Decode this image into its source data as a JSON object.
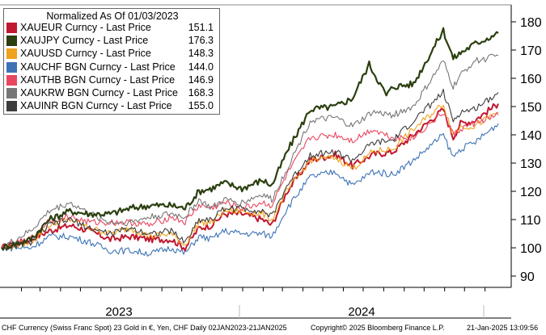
{
  "chart_data": {
    "type": "line",
    "title": "Normalized As Of 01/03/2023",
    "ylim": [
      86,
      186
    ],
    "y_ticks": [
      90,
      100,
      110,
      120,
      130,
      140,
      150,
      160,
      170,
      180
    ],
    "x_period_labels": [
      "2023",
      "2024"
    ],
    "x_range": [
      "2023-01-02",
      "2025-01-21"
    ],
    "grid": false,
    "legend_position": "top-left",
    "series": [
      {
        "name": "XAUEUR Curncy - Last Price",
        "last": "151.1",
        "color": "#c0182f",
        "points": [
          [
            "2023-01-02",
            100
          ],
          [
            "2023-02-15",
            103
          ],
          [
            "2023-03-15",
            106
          ],
          [
            "2023-04-15",
            108
          ],
          [
            "2023-05-15",
            106
          ],
          [
            "2023-06-15",
            103
          ],
          [
            "2023-07-15",
            104
          ],
          [
            "2023-08-15",
            103
          ],
          [
            "2023-09-15",
            103
          ],
          [
            "2023-10-06",
            100
          ],
          [
            "2023-10-27",
            107
          ],
          [
            "2023-11-15",
            108
          ],
          [
            "2023-12-04",
            112
          ],
          [
            "2023-12-31",
            112
          ],
          [
            "2024-01-31",
            110
          ],
          [
            "2024-02-14",
            108
          ],
          [
            "2024-03-08",
            120
          ],
          [
            "2024-04-12",
            131
          ],
          [
            "2024-05-20",
            133
          ],
          [
            "2024-06-15",
            129
          ],
          [
            "2024-07-15",
            133
          ],
          [
            "2024-08-15",
            134
          ],
          [
            "2024-09-15",
            140
          ],
          [
            "2024-10-30",
            149
          ],
          [
            "2024-11-14",
            139
          ],
          [
            "2024-11-25",
            144
          ],
          [
            "2024-12-15",
            145
          ],
          [
            "2025-01-21",
            151
          ]
        ]
      },
      {
        "name": "XAUJPY Curncy - Last Price",
        "last": "176.3",
        "color": "#2b3f0f",
        "points": [
          [
            "2023-01-02",
            100
          ],
          [
            "2023-02-15",
            103
          ],
          [
            "2023-03-15",
            110
          ],
          [
            "2023-04-15",
            113
          ],
          [
            "2023-05-15",
            112
          ],
          [
            "2023-06-15",
            112
          ],
          [
            "2023-07-15",
            114
          ],
          [
            "2023-08-15",
            115
          ],
          [
            "2023-09-15",
            115
          ],
          [
            "2023-10-06",
            114
          ],
          [
            "2023-10-27",
            120
          ],
          [
            "2023-11-15",
            121
          ],
          [
            "2023-12-04",
            123
          ],
          [
            "2023-12-31",
            121
          ],
          [
            "2024-01-31",
            124
          ],
          [
            "2024-02-14",
            122
          ],
          [
            "2024-03-08",
            134
          ],
          [
            "2024-04-12",
            149
          ],
          [
            "2024-05-20",
            150
          ],
          [
            "2024-06-15",
            153
          ],
          [
            "2024-07-10",
            165
          ],
          [
            "2024-08-05",
            154
          ],
          [
            "2024-08-15",
            157
          ],
          [
            "2024-09-15",
            158
          ],
          [
            "2024-10-30",
            177
          ],
          [
            "2024-11-14",
            167
          ],
          [
            "2024-11-25",
            169
          ],
          [
            "2024-12-15",
            172
          ],
          [
            "2025-01-21",
            176
          ]
        ]
      },
      {
        "name": "XAUUSD Curncy - Last Price",
        "last": "148.3",
        "color": "#f0a11e",
        "points": [
          [
            "2023-01-02",
            100
          ],
          [
            "2023-02-15",
            102
          ],
          [
            "2023-03-15",
            108
          ],
          [
            "2023-04-15",
            110
          ],
          [
            "2023-05-15",
            107
          ],
          [
            "2023-06-15",
            105
          ],
          [
            "2023-07-15",
            107
          ],
          [
            "2023-08-15",
            104
          ],
          [
            "2023-09-15",
            105
          ],
          [
            "2023-10-06",
            101
          ],
          [
            "2023-10-27",
            109
          ],
          [
            "2023-11-15",
            109
          ],
          [
            "2023-12-04",
            113
          ],
          [
            "2023-12-31",
            113
          ],
          [
            "2024-01-31",
            112
          ],
          [
            "2024-02-14",
            110
          ],
          [
            "2024-03-08",
            120
          ],
          [
            "2024-04-12",
            131
          ],
          [
            "2024-05-20",
            132
          ],
          [
            "2024-06-15",
            128
          ],
          [
            "2024-07-15",
            134
          ],
          [
            "2024-08-15",
            135
          ],
          [
            "2024-09-15",
            142
          ],
          [
            "2024-10-30",
            151
          ],
          [
            "2024-11-14",
            140
          ],
          [
            "2024-11-25",
            143
          ],
          [
            "2024-12-15",
            143
          ],
          [
            "2025-01-21",
            148
          ]
        ]
      },
      {
        "name": "XAUCHF BGN Curncy - Last Price",
        "last": "144.0",
        "color": "#3d73b5",
        "points": [
          [
            "2023-01-02",
            100
          ],
          [
            "2023-02-15",
            100
          ],
          [
            "2023-03-15",
            104
          ],
          [
            "2023-04-15",
            104
          ],
          [
            "2023-05-15",
            102
          ],
          [
            "2023-06-15",
            99
          ],
          [
            "2023-07-15",
            99
          ],
          [
            "2023-08-15",
            98
          ],
          [
            "2023-09-15",
            100
          ],
          [
            "2023-10-06",
            98
          ],
          [
            "2023-10-27",
            104
          ],
          [
            "2023-11-15",
            103
          ],
          [
            "2023-12-04",
            106
          ],
          [
            "2023-12-31",
            105
          ],
          [
            "2024-01-31",
            105
          ],
          [
            "2024-02-14",
            104
          ],
          [
            "2024-03-08",
            114
          ],
          [
            "2024-04-12",
            125
          ],
          [
            "2024-05-20",
            127
          ],
          [
            "2024-06-15",
            122
          ],
          [
            "2024-07-15",
            127
          ],
          [
            "2024-08-15",
            126
          ],
          [
            "2024-09-15",
            131
          ],
          [
            "2024-10-30",
            140
          ],
          [
            "2024-11-14",
            132
          ],
          [
            "2024-11-25",
            135
          ],
          [
            "2024-12-15",
            137
          ],
          [
            "2025-01-21",
            144
          ]
        ]
      },
      {
        "name": "XAUTHB BGN Curncy - Last Price",
        "last": "146.9",
        "color": "#e8465f",
        "points": [
          [
            "2023-01-02",
            100
          ],
          [
            "2023-02-15",
            103
          ],
          [
            "2023-03-15",
            110
          ],
          [
            "2023-04-15",
            111
          ],
          [
            "2023-05-15",
            109
          ],
          [
            "2023-06-15",
            109
          ],
          [
            "2023-07-15",
            109
          ],
          [
            "2023-08-15",
            108
          ],
          [
            "2023-09-15",
            111
          ],
          [
            "2023-10-06",
            109
          ],
          [
            "2023-10-27",
            115
          ],
          [
            "2023-11-15",
            114
          ],
          [
            "2023-12-04",
            116
          ],
          [
            "2023-12-31",
            114
          ],
          [
            "2024-01-31",
            116
          ],
          [
            "2024-02-14",
            115
          ],
          [
            "2024-03-08",
            126
          ],
          [
            "2024-04-12",
            139
          ],
          [
            "2024-05-20",
            140
          ],
          [
            "2024-06-15",
            138
          ],
          [
            "2024-07-15",
            142
          ],
          [
            "2024-08-15",
            139
          ],
          [
            "2024-09-15",
            139
          ],
          [
            "2024-10-30",
            148
          ],
          [
            "2024-11-14",
            140
          ],
          [
            "2024-11-25",
            142
          ],
          [
            "2024-12-15",
            144
          ],
          [
            "2025-01-21",
            147
          ]
        ]
      },
      {
        "name": "XAUKRW BGN Curncy - Last Price",
        "last": "168.3",
        "color": "#777777",
        "points": [
          [
            "2023-01-02",
            100
          ],
          [
            "2023-02-15",
            106
          ],
          [
            "2023-03-15",
            113
          ],
          [
            "2023-04-15",
            116
          ],
          [
            "2023-05-15",
            112
          ],
          [
            "2023-06-15",
            109
          ],
          [
            "2023-07-15",
            109
          ],
          [
            "2023-08-15",
            111
          ],
          [
            "2023-09-15",
            112
          ],
          [
            "2023-10-06",
            111
          ],
          [
            "2023-10-27",
            117
          ],
          [
            "2023-11-15",
            114
          ],
          [
            "2023-12-04",
            117
          ],
          [
            "2023-12-31",
            116
          ],
          [
            "2024-01-31",
            119
          ],
          [
            "2024-02-14",
            117
          ],
          [
            "2024-03-08",
            128
          ],
          [
            "2024-04-12",
            145
          ],
          [
            "2024-05-20",
            146
          ],
          [
            "2024-06-15",
            143
          ],
          [
            "2024-07-15",
            148
          ],
          [
            "2024-08-15",
            147
          ],
          [
            "2024-09-15",
            150
          ],
          [
            "2024-10-30",
            166
          ],
          [
            "2024-11-14",
            157
          ],
          [
            "2024-11-25",
            161
          ],
          [
            "2024-12-15",
            166
          ],
          [
            "2025-01-21",
            168
          ]
        ]
      },
      {
        "name": "XAUINR BGN Curncy - Last Price",
        "last": "155.0",
        "color": "#3c3c3c",
        "points": [
          [
            "2023-01-02",
            100
          ],
          [
            "2023-02-15",
            102
          ],
          [
            "2023-03-15",
            108
          ],
          [
            "2023-04-15",
            110
          ],
          [
            "2023-05-15",
            107
          ],
          [
            "2023-06-15",
            105
          ],
          [
            "2023-07-15",
            107
          ],
          [
            "2023-08-15",
            105
          ],
          [
            "2023-09-15",
            106
          ],
          [
            "2023-10-06",
            102
          ],
          [
            "2023-10-27",
            110
          ],
          [
            "2023-11-15",
            110
          ],
          [
            "2023-12-04",
            114
          ],
          [
            "2023-12-31",
            114
          ],
          [
            "2024-01-31",
            113
          ],
          [
            "2024-02-14",
            111
          ],
          [
            "2024-03-08",
            122
          ],
          [
            "2024-04-12",
            133
          ],
          [
            "2024-05-20",
            134
          ],
          [
            "2024-06-15",
            131
          ],
          [
            "2024-07-15",
            137
          ],
          [
            "2024-08-15",
            138
          ],
          [
            "2024-09-15",
            145
          ],
          [
            "2024-10-30",
            155
          ],
          [
            "2024-11-14",
            145
          ],
          [
            "2024-11-25",
            148
          ],
          [
            "2024-12-15",
            149
          ],
          [
            "2025-01-21",
            155
          ]
        ]
      }
    ]
  },
  "footer": {
    "left": "CHF Currency (Swiss Franc Spot) 23 Gold in €, Yen, CHF  Daily 02JAN2023-21JAN2025",
    "center": "Copyright© 2025 Bloomberg Finance L.P.",
    "right": "21-Jan-2025 13:09:56"
  }
}
